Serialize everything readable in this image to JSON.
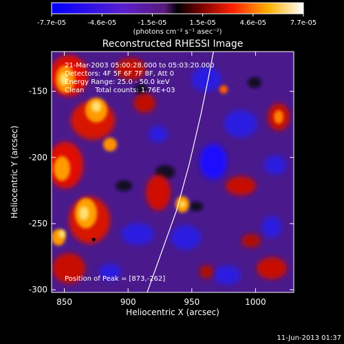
{
  "colorbar": {
    "ticks": [
      "-7.7e-05",
      "-4.6e-05",
      "-1.5e-05",
      "1.5e-05",
      "4.6e-05",
      "7.7e-05"
    ],
    "unit_label": "(photons cm⁻² s⁻¹ asec⁻²)",
    "value_range": [
      -7.7e-05,
      7.7e-05
    ]
  },
  "image": {
    "title": "Reconstructed RHESSI Image",
    "info_lines": [
      "21-Mar-2003 05:00:28.000 to 05:03:20.000",
      "Detectors: 4F 5F 6F 7F 8F, Att 0",
      "Energy Range: 25.0 - 50.0 keV",
      "Clean     Total counts: 1.76E+03"
    ],
    "peak_label": "Position of Peak = [873,-262]"
  },
  "chart_data": {
    "type": "heatmap",
    "title": "Reconstructed RHESSI Image",
    "xlabel": "Heliocentric X (arcsec)",
    "ylabel": "Heliocentric Y (arcsec)",
    "xlim": [
      840,
      1030
    ],
    "ylim": [
      -302,
      -120
    ],
    "x_ticks": [
      850,
      900,
      950,
      1000
    ],
    "y_ticks": [
      -150,
      -200,
      -250,
      -300
    ],
    "peak": [
      873,
      -262
    ],
    "limb": [
      [
        915,
        -302
      ],
      [
        925,
        -275
      ],
      [
        938,
        -240
      ],
      [
        948,
        -205
      ],
      [
        957,
        -168
      ],
      [
        963,
        -140
      ],
      [
        967,
        -120
      ]
    ]
  },
  "footer": {
    "timestamp": "11-Jun-2013 01:37"
  }
}
